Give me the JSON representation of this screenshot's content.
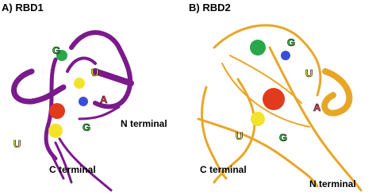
{
  "panels": [
    {
      "title": "A) RBD1",
      "labels": [
        "G",
        "U",
        "A",
        "G",
        "U"
      ],
      "n_terminal": "N terminal",
      "c_terminal": "C terminal"
    },
    {
      "title": "B) RBD2",
      "labels": [
        "G",
        "U",
        "A",
        "U",
        "G"
      ],
      "n_terminal": "N terminal",
      "c_terminal": "C terminal"
    }
  ]
}
